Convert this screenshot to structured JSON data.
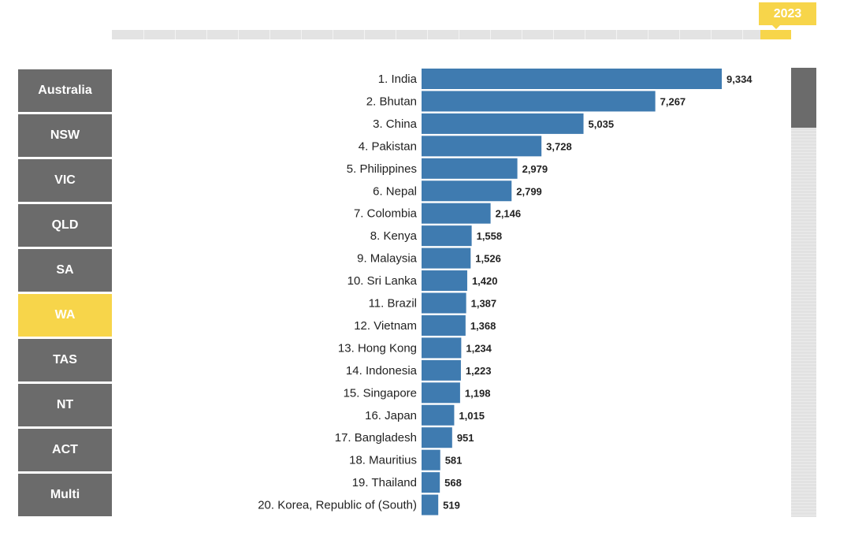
{
  "year": "2023",
  "states": [
    {
      "label": "Australia",
      "active": false
    },
    {
      "label": "NSW",
      "active": false
    },
    {
      "label": "VIC",
      "active": false
    },
    {
      "label": "QLD",
      "active": false
    },
    {
      "label": "SA",
      "active": false
    },
    {
      "label": "WA",
      "active": true
    },
    {
      "label": "TAS",
      "active": false
    },
    {
      "label": "NT",
      "active": false
    },
    {
      "label": "ACT",
      "active": false
    },
    {
      "label": "Multi",
      "active": false
    }
  ],
  "colors": {
    "bar": "#3f7bb0",
    "accent": "#f7d54a",
    "button": "#6b6b6b"
  },
  "chart_data": {
    "type": "bar",
    "orientation": "horizontal",
    "categories": [
      "1. India",
      "2. Bhutan",
      "3. China",
      "4. Pakistan",
      "5. Philippines",
      "6. Nepal",
      "7. Colombia",
      "8. Kenya",
      "9. Malaysia",
      "10. Sri Lanka",
      "11. Brazil",
      "12. Vietnam",
      "13. Hong Kong",
      "14. Indonesia",
      "15. Singapore",
      "16. Japan",
      "17. Bangladesh",
      "18. Mauritius",
      "19. Thailand",
      "20. Korea, Republic of (South)"
    ],
    "values": [
      9334,
      7267,
      5035,
      3728,
      2979,
      2799,
      2146,
      1558,
      1526,
      1420,
      1387,
      1368,
      1234,
      1223,
      1198,
      1015,
      951,
      581,
      568,
      519
    ],
    "value_labels": [
      "9,334",
      "7,267",
      "5,035",
      "3,728",
      "2,979",
      "2,799",
      "2,146",
      "1,558",
      "1,526",
      "1,420",
      "1,387",
      "1,368",
      "1,234",
      "1,223",
      "1,198",
      "1,015",
      "951",
      "581",
      "568",
      "519"
    ],
    "title": "",
    "xlabel": "",
    "ylabel": "",
    "xlim": [
      0,
      9334
    ],
    "grid": false,
    "legend": "none"
  }
}
